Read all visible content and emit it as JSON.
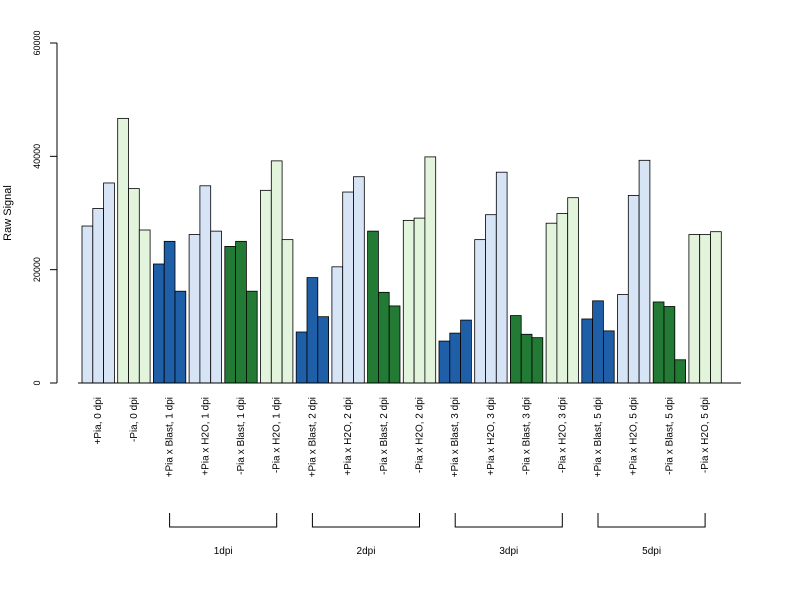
{
  "chart_data": {
    "type": "bar",
    "ylabel": "Raw Signal",
    "ylim": [
      0,
      60000
    ],
    "yticks": [
      0,
      20000,
      40000,
      60000
    ],
    "ytick_labels": [
      "0",
      "20000",
      "40000",
      "60000"
    ],
    "colors": {
      "light_blue": "#d6e4f5",
      "light_green": "#e2f5dc",
      "dark_blue": "#1f5fa8",
      "dark_green": "#237a35"
    },
    "categories": [
      {
        "label": "+Pia, 0 dpi",
        "color": "light_blue",
        "values": [
          27700,
          30800,
          35300
        ]
      },
      {
        "label": "-Pia, 0 dpi",
        "color": "light_green",
        "values": [
          46700,
          34300,
          27000
        ]
      },
      {
        "label": "+Pia x Blast, 1 dpi",
        "color": "dark_blue",
        "values": [
          21000,
          25000,
          16200
        ]
      },
      {
        "label": "+Pia x H2O, 1 dpi",
        "color": "light_blue",
        "values": [
          26200,
          34800,
          26800
        ]
      },
      {
        "label": "-Pia x Blast, 1 dpi",
        "color": "dark_green",
        "values": [
          24100,
          25000,
          16200
        ]
      },
      {
        "label": "-Pia x H2O, 1 dpi",
        "color": "light_green",
        "values": [
          34000,
          39200,
          25300
        ]
      },
      {
        "label": "+Pia x Blast, 2 dpi",
        "color": "dark_blue",
        "values": [
          9000,
          18600,
          11700
        ]
      },
      {
        "label": "+Pia x H2O, 2 dpi",
        "color": "light_blue",
        "values": [
          20500,
          33700,
          36400
        ]
      },
      {
        "label": "-Pia x Blast, 2 dpi",
        "color": "dark_green",
        "values": [
          26800,
          16000,
          13600
        ]
      },
      {
        "label": "-Pia x H2O, 2 dpi",
        "color": "light_green",
        "values": [
          28700,
          29100,
          39900
        ]
      },
      {
        "label": "+Pia x Blast, 3 dpi",
        "color": "dark_blue",
        "values": [
          7400,
          8800,
          11100
        ]
      },
      {
        "label": "+Pia x H2O, 3 dpi",
        "color": "light_blue",
        "values": [
          25300,
          29700,
          37200
        ]
      },
      {
        "label": "-Pia x Blast, 3 dpi",
        "color": "dark_green",
        "values": [
          11900,
          8600,
          8000
        ]
      },
      {
        "label": "-Pia x H2O, 3 dpi",
        "color": "light_green",
        "values": [
          28200,
          29900,
          32700
        ]
      },
      {
        "label": "+Pia x Blast, 5 dpi",
        "color": "dark_blue",
        "values": [
          11300,
          14500,
          9200
        ]
      },
      {
        "label": "+Pia x H2O, 5 dpi",
        "color": "light_blue",
        "values": [
          15600,
          33100,
          39300
        ]
      },
      {
        "label": "-Pia x Blast, 5 dpi",
        "color": "dark_green",
        "values": [
          14300,
          13500,
          4100
        ]
      },
      {
        "label": "-Pia x H2O, 5 dpi",
        "color": "light_green",
        "values": [
          26200,
          26200,
          26700
        ]
      }
    ],
    "groups": [
      {
        "label": "1dpi",
        "from": 2,
        "to": 5
      },
      {
        "label": "2dpi",
        "from": 6,
        "to": 9
      },
      {
        "label": "3dpi",
        "from": 10,
        "to": 13
      },
      {
        "label": "5dpi",
        "from": 14,
        "to": 17
      }
    ]
  }
}
